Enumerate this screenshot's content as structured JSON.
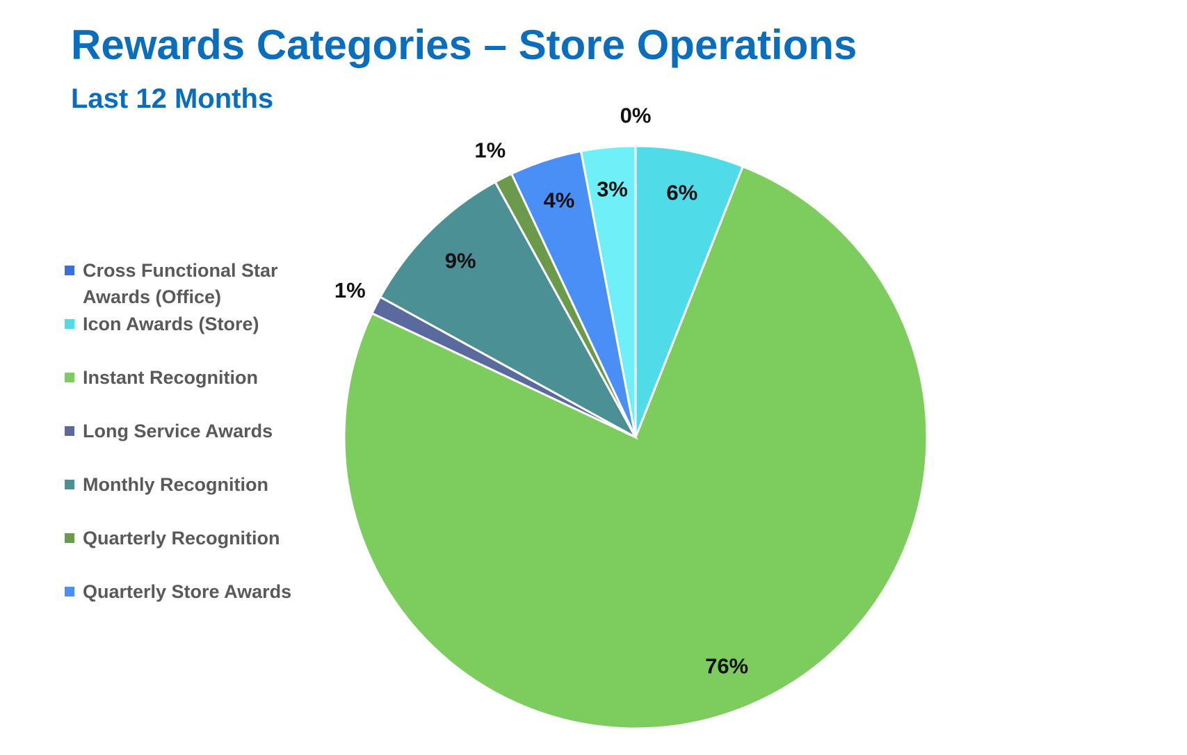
{
  "chart_data": {
    "type": "pie",
    "title": "Rewards Categories – Store Operations",
    "subtitle": "Last 12 Months",
    "categories": [
      "Cross Functional Star Awards (Office)",
      "Icon Awards (Store)",
      "Instant Recognition",
      "Long Service Awards",
      "Monthly Recognition",
      "Quarterly Recognition",
      "Quarterly Store Awards",
      null
    ],
    "values": [
      0,
      6,
      76,
      1,
      9,
      1,
      4,
      3
    ],
    "value_labels": [
      "0%",
      "6%",
      "76%",
      "1%",
      "9%",
      "1%",
      "4%",
      "3%"
    ],
    "colors": [
      "#3b6fd8",
      "#4fdbe8",
      "#7ccc5e",
      "#5a6a9e",
      "#4a9094",
      "#6a9a4a",
      "#4a8ff5",
      "#6ff0f8"
    ],
    "legend": "left"
  }
}
